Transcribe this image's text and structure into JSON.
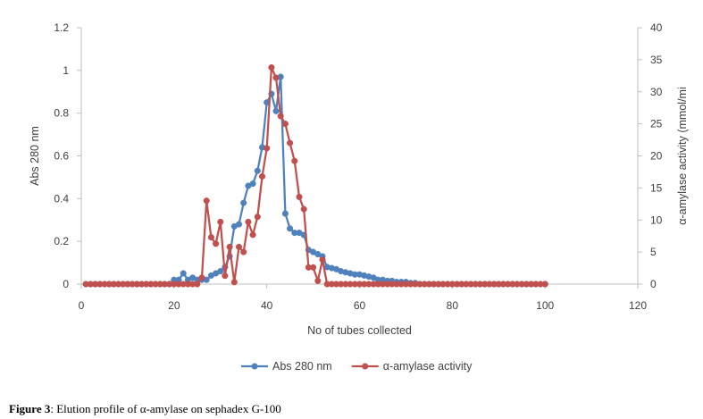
{
  "chart_data": {
    "type": "line",
    "xlabel": "No of tubes collected",
    "ylabel": "Abs 280 nm",
    "y2label": "α-amylase activity (mmol/mi",
    "xlim": [
      0,
      120
    ],
    "ylim": [
      0,
      1.2
    ],
    "y2lim": [
      0,
      40
    ],
    "xticks": [
      "0",
      "20",
      "40",
      "60",
      "80",
      "100",
      "120"
    ],
    "yticks": [
      "0",
      "0.2",
      "0.4",
      "0.6",
      "0.8",
      "1",
      "1.2"
    ],
    "y2ticks": [
      "0",
      "5",
      "10",
      "15",
      "20",
      "25",
      "30",
      "35",
      "40"
    ],
    "grid": false,
    "legend_position": "bottom",
    "series": [
      {
        "name": "Abs 280 nm",
        "axis": "left",
        "color": "#4F81BD",
        "x": [
          1,
          2,
          3,
          4,
          5,
          6,
          7,
          8,
          9,
          10,
          11,
          12,
          13,
          14,
          15,
          16,
          17,
          18,
          19,
          20,
          21,
          22,
          23,
          24,
          25,
          26,
          27,
          28,
          29,
          30,
          31,
          32,
          33,
          34,
          35,
          36,
          37,
          38,
          39,
          40,
          41,
          42,
          43,
          44,
          45,
          46,
          47,
          48,
          49,
          50,
          51,
          52,
          53,
          54,
          55,
          56,
          57,
          58,
          59,
          60,
          61,
          62,
          63,
          64,
          65,
          66,
          67,
          68,
          69,
          70,
          71,
          72,
          73,
          74,
          75,
          76,
          77,
          78,
          79,
          80,
          81,
          82,
          83,
          84,
          85,
          86,
          87,
          88,
          89,
          90,
          91,
          92,
          93,
          94,
          95,
          96,
          97,
          98,
          99,
          100
        ],
        "y": [
          0,
          0,
          0,
          0,
          0,
          0,
          0,
          0,
          0,
          0,
          0,
          0,
          0,
          0,
          0,
          0,
          0,
          0,
          0,
          0.02,
          0.02,
          0.05,
          0.02,
          0.03,
          0.02,
          0.02,
          0.02,
          0.04,
          0.05,
          0.06,
          0.08,
          0.13,
          0.27,
          0.28,
          0.38,
          0.46,
          0.47,
          0.53,
          0.64,
          0.85,
          0.89,
          0.81,
          0.97,
          0.33,
          0.26,
          0.24,
          0.24,
          0.23,
          0.16,
          0.15,
          0.14,
          0.13,
          0.08,
          0.075,
          0.07,
          0.06,
          0.055,
          0.05,
          0.045,
          0.045,
          0.04,
          0.035,
          0.03,
          0.02,
          0.02,
          0.015,
          0.015,
          0.01,
          0.01,
          0.01,
          0.005,
          0.005,
          0,
          0,
          0,
          0,
          0,
          0,
          0,
          0,
          0,
          0,
          0,
          0,
          0,
          0,
          0,
          0,
          0,
          0,
          0,
          0,
          0,
          0,
          0,
          0,
          0,
          0,
          0,
          0
        ]
      },
      {
        "name": "α-amylase activity",
        "axis": "right",
        "color": "#C0504D",
        "x": [
          1,
          2,
          3,
          4,
          5,
          6,
          7,
          8,
          9,
          10,
          11,
          12,
          13,
          14,
          15,
          16,
          17,
          18,
          19,
          20,
          21,
          22,
          23,
          24,
          25,
          26,
          27,
          28,
          29,
          30,
          31,
          32,
          33,
          34,
          35,
          36,
          37,
          38,
          39,
          40,
          41,
          42,
          43,
          44,
          45,
          46,
          47,
          48,
          49,
          50,
          51,
          52,
          53,
          54,
          55,
          56,
          57,
          58,
          59,
          60,
          61,
          62,
          63,
          64,
          65,
          66,
          67,
          68,
          69,
          70,
          71,
          72,
          73,
          74,
          75,
          76,
          77,
          78,
          79,
          80,
          81,
          82,
          83,
          84,
          85,
          86,
          87,
          88,
          89,
          90,
          91,
          92,
          93,
          94,
          95,
          96,
          97,
          98,
          99,
          100
        ],
        "y": [
          0,
          0,
          0,
          0,
          0,
          0,
          0,
          0,
          0,
          0,
          0,
          0,
          0,
          0,
          0,
          0,
          0,
          0,
          0,
          0,
          0,
          0,
          0,
          0,
          0,
          1,
          13,
          7.3,
          6.3,
          9.7,
          1.3,
          5.8,
          0.3,
          5.8,
          5,
          9.7,
          7.7,
          10.5,
          16.8,
          21.2,
          33.8,
          32.2,
          26.2,
          25,
          22,
          19.2,
          13.6,
          11.7,
          2.6,
          2.6,
          0.5,
          3.8,
          0,
          0,
          0,
          0,
          0,
          0,
          0,
          0,
          0,
          0,
          0,
          0,
          0,
          0,
          0,
          0,
          0,
          0,
          0,
          0,
          0,
          0,
          0,
          0,
          0,
          0,
          0,
          0,
          0,
          0,
          0,
          0,
          0,
          0,
          0,
          0,
          0,
          0,
          0,
          0,
          0,
          0,
          0,
          0,
          0,
          0,
          0,
          0
        ]
      }
    ]
  },
  "caption": {
    "label": "Figure 3",
    "text": ": Elution profile of α-amylase on sephadex G-100"
  }
}
